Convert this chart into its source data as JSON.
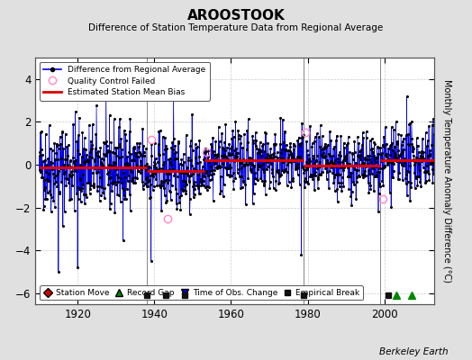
{
  "title": "AROOSTOOK",
  "subtitle": "Difference of Station Temperature Data from Regional Average",
  "ylabel": "Monthly Temperature Anomaly Difference (°C)",
  "xlim": [
    1909,
    2013
  ],
  "ylim": [
    -6.5,
    5.0
  ],
  "yticks": [
    -6,
    -4,
    -2,
    0,
    2,
    4
  ],
  "xticks": [
    1920,
    1940,
    1960,
    1980,
    2000
  ],
  "bg_color": "#e0e0e0",
  "plot_bg_color": "#ffffff",
  "grid_color": "#aaaaaa",
  "line_color": "#0000dd",
  "bias_color": "#dd0000",
  "marker_color": "#000000",
  "qc_color": "#ff88cc",
  "seed": 42,
  "start_year": 1910,
  "end_year": 2012,
  "bias_segments": [
    {
      "start": 1910,
      "end": 1938,
      "value": -0.1
    },
    {
      "start": 1938,
      "end": 1953,
      "value": -0.3
    },
    {
      "start": 1953,
      "end": 1979,
      "value": 0.2
    },
    {
      "start": 1979,
      "end": 1999,
      "value": -0.05
    },
    {
      "start": 1999,
      "end": 2013,
      "value": 0.2
    }
  ],
  "vertical_lines": [
    1938,
    1979,
    1999
  ],
  "empirical_breaks": [
    1938,
    1943,
    1948,
    1979,
    2001
  ],
  "record_gaps": [
    2003,
    2007
  ],
  "qc_failed_x": [
    1939.3,
    1943.5,
    1953.5,
    1979.3,
    1999.5
  ],
  "qc_failed_y": [
    1.2,
    -2.5,
    0.6,
    1.5,
    -1.6
  ],
  "watermark": "Berkeley Earth"
}
